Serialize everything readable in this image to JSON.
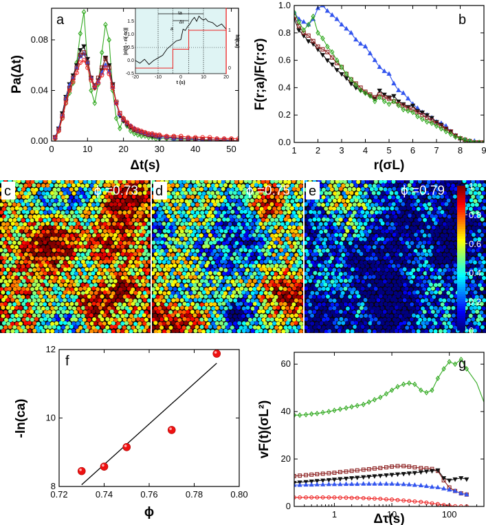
{
  "chart_data": [
    {
      "id": "a",
      "panel_label": "a",
      "type": "line",
      "xlabel": "Δt(s)",
      "ylabel": "Pa(Δt)",
      "xlim": [
        0,
        52
      ],
      "ylim": [
        0,
        0.105
      ],
      "xticks": [
        0,
        10,
        20,
        30,
        40,
        50
      ],
      "yticks": [
        0.0,
        0.04,
        0.08
      ],
      "ytick_labels": [
        "0.00",
        "0.04",
        "0.08"
      ],
      "x": [
        1,
        2,
        3,
        4,
        5,
        6,
        7,
        8,
        9,
        10,
        11,
        12,
        13,
        14,
        15,
        16,
        17,
        18,
        19,
        20,
        21,
        22,
        23,
        24,
        25,
        26,
        27,
        28,
        29,
        30,
        32,
        34,
        36,
        38,
        40,
        42,
        44,
        46,
        48,
        50,
        52
      ],
      "series": [
        {
          "name": "green diamonds",
          "color": "#33aa22",
          "marker": "diamond",
          "values": [
            0.002,
            0.008,
            0.018,
            0.03,
            0.038,
            0.046,
            0.062,
            0.085,
            0.102,
            0.062,
            0.04,
            0.03,
            0.045,
            0.07,
            0.092,
            0.08,
            0.04,
            0.018,
            0.01,
            0.018,
            0.012,
            0.008,
            0.006,
            0.005,
            0.004,
            0.004,
            0.003,
            0.003,
            0.002,
            0.002,
            0.002,
            0.001,
            0.001,
            0.001,
            0.001,
            0.001,
            0.0,
            0.0,
            0.0,
            0.0,
            0.0
          ]
        },
        {
          "name": "black triangles",
          "color": "#111111",
          "marker": "tri-down",
          "values": [
            0.003,
            0.01,
            0.022,
            0.035,
            0.045,
            0.052,
            0.06,
            0.072,
            0.075,
            0.065,
            0.05,
            0.042,
            0.048,
            0.056,
            0.066,
            0.06,
            0.045,
            0.03,
            0.02,
            0.016,
            0.013,
            0.011,
            0.009,
            0.008,
            0.007,
            0.006,
            0.005,
            0.004,
            0.004,
            0.003,
            0.003,
            0.002,
            0.002,
            0.002,
            0.001,
            0.001,
            0.001,
            0.001,
            0.0,
            0.0,
            0.0
          ]
        },
        {
          "name": "blue triangles",
          "color": "#3355ee",
          "marker": "tri-up",
          "values": [
            0.003,
            0.01,
            0.02,
            0.034,
            0.044,
            0.05,
            0.058,
            0.067,
            0.069,
            0.062,
            0.05,
            0.043,
            0.047,
            0.054,
            0.06,
            0.055,
            0.043,
            0.03,
            0.021,
            0.017,
            0.014,
            0.012,
            0.01,
            0.008,
            0.007,
            0.006,
            0.005,
            0.005,
            0.004,
            0.003,
            0.003,
            0.002,
            0.002,
            0.002,
            0.001,
            0.001,
            0.001,
            0.001,
            0.001,
            0.0,
            0.0
          ]
        },
        {
          "name": "brown squares",
          "color": "#8b1e1e",
          "marker": "square",
          "values": [
            0.003,
            0.009,
            0.02,
            0.033,
            0.042,
            0.05,
            0.058,
            0.068,
            0.07,
            0.062,
            0.05,
            0.044,
            0.05,
            0.058,
            0.065,
            0.058,
            0.044,
            0.031,
            0.022,
            0.017,
            0.014,
            0.011,
            0.009,
            0.008,
            0.007,
            0.006,
            0.005,
            0.005,
            0.004,
            0.004,
            0.003,
            0.003,
            0.002,
            0.002,
            0.002,
            0.001,
            0.001,
            0.001,
            0.001,
            0.001,
            0.0
          ]
        },
        {
          "name": "red circles",
          "color": "#ee2222",
          "marker": "circle",
          "values": [
            0.002,
            0.008,
            0.018,
            0.03,
            0.04,
            0.047,
            0.054,
            0.062,
            0.064,
            0.058,
            0.048,
            0.042,
            0.046,
            0.052,
            0.058,
            0.053,
            0.042,
            0.03,
            0.022,
            0.018,
            0.015,
            0.012,
            0.01,
            0.009,
            0.008,
            0.007,
            0.006,
            0.006,
            0.005,
            0.005,
            0.004,
            0.004,
            0.004,
            0.003,
            0.003,
            0.003,
            0.003,
            0.002,
            0.002,
            0.002,
            0.002
          ]
        }
      ],
      "inset": {
        "xlabel": "t (s)",
        "ylabel_left": "|ri(t) - ri(-tc)|",
        "ylabel_right": "hi(t;a)",
        "xlim": [
          -20,
          20
        ],
        "ylim": [
          -0.5,
          2.0
        ],
        "xticks": [
          -20,
          -10,
          0,
          10,
          20
        ],
        "yticks": [
          -0.5,
          0.0,
          0.5,
          1.0,
          1.5
        ],
        "ytick_labels": [
          "-0.5",
          "0.0",
          "0.5",
          "1.0",
          "1.5"
        ],
        "right_ticks": [
          "1",
          "0"
        ],
        "annotations": [
          "ta",
          "Δt",
          "a"
        ],
        "trace_t": [
          -20,
          -18,
          -16,
          -14,
          -12,
          -10,
          -8,
          -6,
          -4,
          -2,
          0,
          1,
          2,
          3,
          4,
          5,
          6,
          7,
          8,
          9,
          10,
          11,
          12,
          14,
          16,
          18,
          20
        ],
        "trace_r": [
          0.0,
          -0.1,
          0.05,
          -0.15,
          0.0,
          0.1,
          0.2,
          0.45,
          0.6,
          0.75,
          0.8,
          1.2,
          1.15,
          1.3,
          1.4,
          1.55,
          1.65,
          1.5,
          1.7,
          1.6,
          1.55,
          1.6,
          1.5,
          1.45,
          1.3,
          1.4,
          1.2
        ],
        "step_t": [
          -20,
          -3.5,
          -3.5,
          3.5,
          3.5,
          20
        ],
        "step_h": [
          0,
          0,
          0.5,
          0.5,
          1,
          1
        ]
      }
    },
    {
      "id": "b",
      "panel_label": "b",
      "type": "line",
      "xlabel": "r(σL)",
      "ylabel": "F(r;a)/F(r;σ)",
      "xlim": [
        1,
        9
      ],
      "ylim": [
        0,
        1.0
      ],
      "xticks": [
        1,
        2,
        3,
        4,
        5,
        6,
        7,
        8,
        9
      ],
      "yticks": [
        0.0,
        0.2,
        0.4,
        0.6,
        0.8,
        1.0
      ],
      "ytick_labels": [
        "0.0",
        "0.2",
        "0.4",
        "0.6",
        "0.8",
        "1.0"
      ],
      "x": [
        1.0,
        1.2,
        1.4,
        1.6,
        1.8,
        2.0,
        2.2,
        2.4,
        2.6,
        2.8,
        3.0,
        3.2,
        3.4,
        3.6,
        3.8,
        4.0,
        4.2,
        4.4,
        4.6,
        4.8,
        5.0,
        5.2,
        5.4,
        5.6,
        5.8,
        6.0,
        6.2,
        6.4,
        6.6,
        6.8,
        7.0,
        7.2,
        7.4,
        7.6,
        7.8,
        8.0,
        8.2,
        8.4,
        8.6,
        8.8,
        9.0
      ],
      "series": [
        {
          "name": "blue triangles",
          "color": "#3355ee",
          "marker": "tri-up",
          "values": [
            0.95,
            0.9,
            0.88,
            0.86,
            0.9,
            0.98,
            1.0,
            0.96,
            0.93,
            0.9,
            0.86,
            0.83,
            0.8,
            0.75,
            0.72,
            0.7,
            0.65,
            0.6,
            0.55,
            0.52,
            0.5,
            0.43,
            0.38,
            0.36,
            0.32,
            0.28,
            0.25,
            0.22,
            0.2,
            0.18,
            0.15,
            0.14,
            0.12,
            0.08,
            0.05,
            0.03,
            0.02,
            0.01,
            0.01,
            0.0,
            0.0
          ]
        },
        {
          "name": "black triangles",
          "color": "#111111",
          "marker": "tri-down",
          "values": [
            0.9,
            0.82,
            0.78,
            0.74,
            0.72,
            0.68,
            0.64,
            0.6,
            0.57,
            0.53,
            0.5,
            0.47,
            0.43,
            0.4,
            0.38,
            0.36,
            0.34,
            0.32,
            0.38,
            0.35,
            0.33,
            0.34,
            0.3,
            0.28,
            0.26,
            0.27,
            0.23,
            0.22,
            0.2,
            0.18,
            0.15,
            0.13,
            0.1,
            0.08,
            0.05,
            0.03,
            0.01,
            0.0,
            0.0,
            0.0,
            0.0
          ]
        },
        {
          "name": "brown squares",
          "color": "#8b1e1e",
          "marker": "square",
          "values": [
            0.92,
            0.85,
            0.8,
            0.78,
            0.74,
            0.7,
            0.68,
            0.66,
            0.62,
            0.58,
            0.55,
            0.5,
            0.46,
            0.43,
            0.4,
            0.37,
            0.35,
            0.33,
            0.35,
            0.33,
            0.32,
            0.3,
            0.28,
            0.27,
            0.25,
            0.24,
            0.22,
            0.2,
            0.18,
            0.16,
            0.14,
            0.12,
            0.1,
            0.08,
            0.05,
            0.03,
            0.02,
            0.01,
            0.0,
            0.0,
            0.0
          ]
        },
        {
          "name": "green diamonds",
          "color": "#33aa22",
          "marker": "diamond",
          "values": [
            0.95,
            0.88,
            0.82,
            0.86,
            0.92,
            0.8,
            0.76,
            0.7,
            0.66,
            0.6,
            0.55,
            0.5,
            0.46,
            0.42,
            0.38,
            0.36,
            0.34,
            0.3,
            0.33,
            0.3,
            0.28,
            0.3,
            0.27,
            0.24,
            0.23,
            0.22,
            0.19,
            0.17,
            0.15,
            0.14,
            0.12,
            0.1,
            0.08,
            0.06,
            0.04,
            0.03,
            0.02,
            0.01,
            0.0,
            0.0,
            0.0
          ]
        }
      ]
    },
    {
      "id": "f",
      "panel_label": "f",
      "type": "scatter",
      "xlabel": "ϕ",
      "ylabel": "-ln(ca)",
      "xlim": [
        0.72,
        0.8
      ],
      "ylim": [
        8,
        12
      ],
      "xticks": [
        0.72,
        0.74,
        0.76,
        0.78,
        0.8
      ],
      "xtick_labels": [
        "0.72",
        "0.74",
        "0.76",
        "0.78",
        "0.80"
      ],
      "yticks": [
        8,
        10,
        12
      ],
      "x": [
        0.73,
        0.74,
        0.75,
        0.77,
        0.79
      ],
      "y": [
        8.45,
        8.58,
        9.15,
        9.65,
        11.88
      ],
      "fit_line": {
        "x": [
          0.73,
          0.79
        ],
        "y": [
          8.05,
          11.6
        ]
      }
    },
    {
      "id": "g",
      "panel_label": "g",
      "type": "line",
      "xscale": "log",
      "xlabel": "Δτ(s)",
      "ylabel": "vF(t)(σL²)",
      "xlim": [
        0.2,
        400
      ],
      "ylim": [
        0,
        65
      ],
      "xticks": [
        1,
        10,
        100
      ],
      "yticks": [
        0,
        20,
        40,
        60
      ],
      "x": [
        0.2,
        0.25,
        0.32,
        0.4,
        0.5,
        0.63,
        0.8,
        1.0,
        1.26,
        1.6,
        2.0,
        2.5,
        3.2,
        4.0,
        5.0,
        6.3,
        8.0,
        10,
        12.6,
        16,
        20,
        25,
        32,
        40,
        50,
        63,
        80,
        100,
        126,
        160,
        200
      ],
      "series": [
        {
          "name": "green diamonds",
          "color": "#33aa22",
          "marker": "diamond",
          "values": [
            38.5,
            38.5,
            38.7,
            39.0,
            39.2,
            39.6,
            40.0,
            40.5,
            41.0,
            41.5,
            42.0,
            42.5,
            43.0,
            44.0,
            45.0,
            46.0,
            47.5,
            49.0,
            50.5,
            51.5,
            52.0,
            51.5,
            49.0,
            48.0,
            49.0,
            54.0,
            58.0,
            61.0,
            60.0,
            62.0,
            58.0
          ],
          "extra_tail": {
            "x": [
              300,
              400
            ],
            "y": [
              52,
              44
            ]
          }
        },
        {
          "name": "brown squares",
          "color": "#8b1e1e",
          "marker": "square",
          "values": [
            12.8,
            13.0,
            13.2,
            13.4,
            13.6,
            13.8,
            14.0,
            14.2,
            14.5,
            14.7,
            15.0,
            15.2,
            15.5,
            15.7,
            16.0,
            16.2,
            16.5,
            16.8,
            17.0,
            17.0,
            16.8,
            16.5,
            16.2,
            16.0,
            15.8,
            15.0,
            11.0,
            8.0,
            6.5,
            5.5,
            5.0
          ]
        },
        {
          "name": "black triangles",
          "color": "#111111",
          "marker": "tri-down",
          "values": [
            10.0,
            10.2,
            10.4,
            10.6,
            10.8,
            11.0,
            11.2,
            11.4,
            11.6,
            11.8,
            12.0,
            12.2,
            12.4,
            12.6,
            12.8,
            13.0,
            13.2,
            13.4,
            13.6,
            13.8,
            14.0,
            14.2,
            14.5,
            14.8,
            15.0,
            15.3,
            12.0,
            11.0,
            11.5,
            12.0,
            11.5
          ]
        },
        {
          "name": "blue triangles",
          "color": "#3355ee",
          "marker": "tri-up",
          "values": [
            9.0,
            9.0,
            9.1,
            9.1,
            9.2,
            9.2,
            9.3,
            9.3,
            9.3,
            9.4,
            9.4,
            9.4,
            9.5,
            9.5,
            9.5,
            9.5,
            9.5,
            9.5,
            9.4,
            9.3,
            9.2,
            9.0,
            8.8,
            8.5,
            8.2,
            8.0,
            7.5,
            7.0,
            6.5,
            5.5,
            5.0
          ]
        },
        {
          "name": "red circles",
          "color": "#ee2222",
          "marker": "circle",
          "values": [
            3.8,
            3.8,
            3.8,
            3.8,
            3.8,
            3.8,
            3.8,
            3.8,
            3.7,
            3.7,
            3.6,
            3.6,
            3.5,
            3.4,
            3.3,
            3.2,
            3.0,
            2.9,
            2.7,
            2.5,
            2.3,
            2.1,
            1.9,
            1.6,
            1.3,
            1.0,
            0.6,
            0.3,
            0.1,
            0.0,
            0.0
          ]
        }
      ]
    }
  ],
  "maps": [
    {
      "id": "c",
      "panel_label": "c",
      "phi_label": "ϕ =0.73",
      "mean_level": 0.66,
      "red_zones": 5
    },
    {
      "id": "d",
      "panel_label": "d",
      "phi_label": "ϕ =0.75",
      "mean_level": 0.52,
      "red_zones": 3
    },
    {
      "id": "e",
      "panel_label": "e",
      "phi_label": "ϕ =0.79",
      "mean_level": 0.22,
      "red_zones": 1
    }
  ],
  "colorbar": {
    "ticks": [
      "1",
      "0.8",
      "0.6",
      "0.4",
      "0.2",
      "0"
    ],
    "values": [
      1,
      0.8,
      0.6,
      0.4,
      0.2,
      0
    ]
  }
}
